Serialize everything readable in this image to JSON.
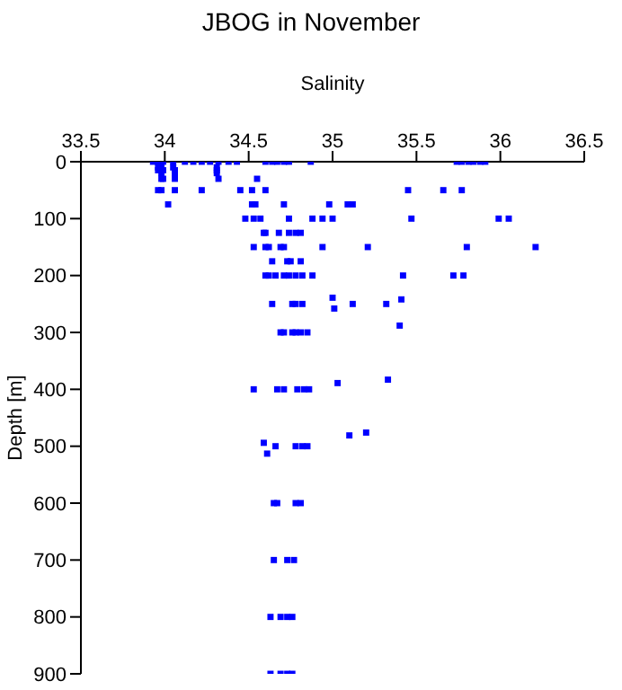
{
  "chart_data": {
    "type": "scatter",
    "title": "JBOG in November",
    "xlabel": "Salinity",
    "ylabel": "Depth [m]",
    "xlim": [
      33.5,
      36.5
    ],
    "xticks": [
      33.5,
      34,
      34.5,
      35,
      35.5,
      36,
      36.5
    ],
    "ylim": [
      900,
      0
    ],
    "yticks": [
      0,
      100,
      200,
      300,
      400,
      500,
      600,
      700,
      800,
      900
    ],
    "marker": "square",
    "grid": false,
    "legend": false,
    "series": [
      {
        "color": "#0000ff",
        "x": [
          33.93,
          33.96,
          33.99,
          34.05,
          34.12,
          34.17,
          34.22,
          34.27,
          34.32,
          34.38,
          34.43,
          34.6,
          34.64,
          34.67,
          34.71,
          34.74,
          34.87,
          35.74,
          35.77,
          35.81,
          35.84,
          35.88,
          35.91,
          33.96,
          33.98,
          34.05,
          34.31,
          33.96,
          33.99,
          34.06,
          34.31,
          33.98,
          34.06,
          34.31,
          33.98,
          33.99,
          34.06,
          34.32,
          34.55,
          33.96,
          33.98,
          34.06,
          34.22,
          34.45,
          34.52,
          34.6,
          35.45,
          35.66,
          35.77,
          34.02,
          34.52,
          34.54,
          34.71,
          34.98,
          35.09,
          35.12,
          34.48,
          34.53,
          34.57,
          34.74,
          34.88,
          34.94,
          35.0,
          35.47,
          35.99,
          36.05,
          34.59,
          34.6,
          34.68,
          34.74,
          34.78,
          34.81,
          34.53,
          34.6,
          34.62,
          34.69,
          34.71,
          34.94,
          35.21,
          35.8,
          36.21,
          34.64,
          34.73,
          34.75,
          34.81,
          34.6,
          34.62,
          34.66,
          34.71,
          34.74,
          34.78,
          34.82,
          34.88,
          35.42,
          35.72,
          35.78,
          34.64,
          34.76,
          34.78,
          34.82,
          35.12,
          35.32,
          35.0,
          35.01,
          35.41,
          35.4,
          34.69,
          34.71,
          34.76,
          34.78,
          34.81,
          34.85,
          34.53,
          34.67,
          34.71,
          34.79,
          34.83,
          34.86,
          35.03,
          35.33,
          34.59,
          34.66,
          34.78,
          34.82,
          34.85,
          34.61,
          35.1,
          35.2,
          34.65,
          34.67,
          34.78,
          34.81,
          34.65,
          34.73,
          34.77,
          34.63,
          34.69,
          34.73,
          34.76,
          34.63,
          34.69,
          34.73,
          34.76
        ],
        "values": [
          0,
          0,
          0,
          0,
          0,
          0,
          0,
          0,
          0,
          0,
          0,
          0,
          0,
          0,
          0,
          0,
          0,
          0,
          0,
          0,
          0,
          0,
          0,
          10,
          10,
          10,
          10,
          15,
          15,
          15,
          15,
          20,
          20,
          20,
          30,
          30,
          30,
          30,
          30,
          50,
          50,
          50,
          50,
          50,
          50,
          50,
          50,
          50,
          50,
          75,
          75,
          75,
          75,
          75,
          75,
          75,
          100,
          100,
          100,
          100,
          100,
          100,
          100,
          100,
          100,
          100,
          125,
          125,
          125,
          125,
          125,
          125,
          150,
          150,
          150,
          150,
          150,
          150,
          150,
          150,
          150,
          175,
          175,
          175,
          175,
          200,
          200,
          200,
          200,
          200,
          200,
          200,
          200,
          200,
          200,
          200,
          250,
          250,
          250,
          250,
          250,
          250,
          239,
          258,
          242,
          288,
          300,
          300,
          300,
          300,
          300,
          300,
          400,
          400,
          400,
          400,
          400,
          400,
          389,
          383,
          494,
          500,
          500,
          500,
          500,
          513,
          481,
          476,
          600,
          600,
          600,
          600,
          700,
          700,
          700,
          800,
          800,
          800,
          800,
          900,
          900,
          900,
          900
        ]
      }
    ]
  }
}
